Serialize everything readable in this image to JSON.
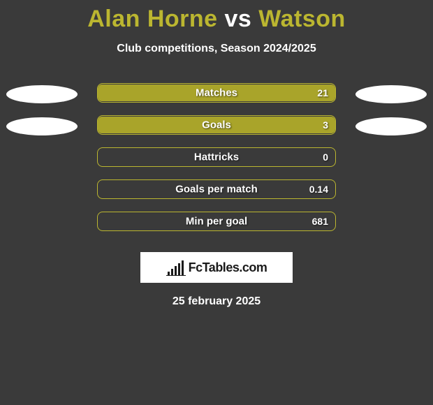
{
  "title_parts": {
    "p1": "Alan Horne",
    "vs": " vs ",
    "p2": "Watson"
  },
  "title_colors": {
    "p1": "#bbb630",
    "vs": "#ffffff",
    "p2": "#bbb630"
  },
  "subtitle": "Club competitions, Season 2024/2025",
  "logo_text": "FcTables.com",
  "date": "25 february 2025",
  "background_color": "#3a3a3a",
  "bar_colors": {
    "fill": "#a9a42a",
    "border": "#bbb630"
  },
  "ellipse_color": "#ffffff",
  "rows": [
    {
      "label": "Matches",
      "value": "21",
      "fill_pct": 100,
      "left_ellipse": true,
      "right_ellipse": true
    },
    {
      "label": "Goals",
      "value": "3",
      "fill_pct": 100,
      "left_ellipse": true,
      "right_ellipse": true
    },
    {
      "label": "Hattricks",
      "value": "0",
      "fill_pct": 0,
      "left_ellipse": false,
      "right_ellipse": false
    },
    {
      "label": "Goals per match",
      "value": "0.14",
      "fill_pct": 0,
      "left_ellipse": false,
      "right_ellipse": false
    },
    {
      "label": "Min per goal",
      "value": "681",
      "fill_pct": 0,
      "left_ellipse": false,
      "right_ellipse": false
    }
  ],
  "logo_bars": [
    {
      "x": 2,
      "h": 5
    },
    {
      "x": 7,
      "h": 9
    },
    {
      "x": 12,
      "h": 13
    },
    {
      "x": 17,
      "h": 17
    },
    {
      "x": 22,
      "h": 21
    }
  ]
}
